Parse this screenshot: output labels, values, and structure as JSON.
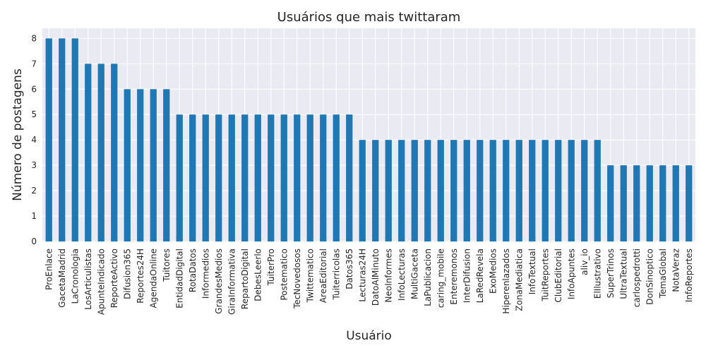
{
  "chart_data": {
    "type": "bar",
    "title": "Usuários que mais twittaram",
    "xlabel": "Usuário",
    "ylabel": "Número de postagens",
    "ylim": [
      0,
      8.4
    ],
    "yticks": [
      0,
      1,
      2,
      3,
      4,
      5,
      6,
      7,
      8
    ],
    "grid": true,
    "bar_color": "#1f77b4",
    "background": "#eaeaf2",
    "categories": [
      "ProEnlace",
      "GacetaMadrid",
      "LaCronologia",
      "LosArticulistas",
      "ApunteIndicado",
      "ReporteActivo",
      "Difusion365",
      "Reportes24H",
      "AgendaOnline",
      "Tuitores",
      "EntidadDigital",
      "RotaDatos",
      "Informedios",
      "GrandesMedios",
      "GiraInformativa",
      "RepartoDigital",
      "DebesLeerlo",
      "TuiterPro",
      "Postematico",
      "TecNovedosos",
      "Twittematico",
      "AreaEditorial",
      "Tuiterricolas",
      "Datos365",
      "Lecturas24H",
      "DatoAlMinuto",
      "NeoInformes",
      "InfoLecturas",
      "MultiGaceta",
      "LaPublicacion",
      "caring_mobile",
      "Enteremonos",
      "InterDifusion",
      "LaRedRevela",
      "ExoMedios",
      "Hiperenlazados",
      "ZonaMediatica",
      "InfoTextual",
      "TuitReportes",
      "ClubEditorial",
      "InfoApuntes",
      "aliv_io",
      "ElIlustrativo",
      "SuperTrinos",
      "UltraTextual",
      "carlospedrotti",
      "DonSinoptico",
      "TemaGlobal",
      "NotaVeraz",
      "InfoReportes"
    ],
    "values": [
      8,
      8,
      8,
      7,
      7,
      7,
      6,
      6,
      6,
      6,
      5,
      5,
      5,
      5,
      5,
      5,
      5,
      5,
      5,
      5,
      5,
      5,
      5,
      5,
      4,
      4,
      4,
      4,
      4,
      4,
      4,
      4,
      4,
      4,
      4,
      4,
      4,
      4,
      4,
      4,
      4,
      4,
      4,
      3,
      3,
      3,
      3,
      3,
      3,
      3
    ]
  }
}
